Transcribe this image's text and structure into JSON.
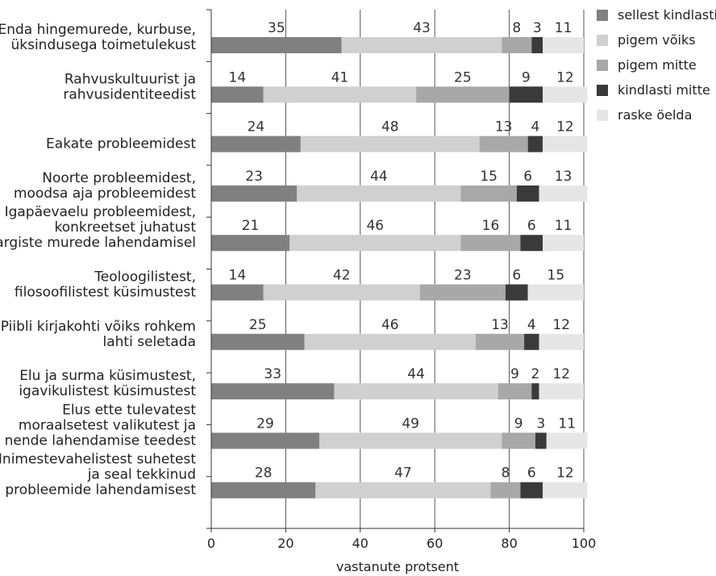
{
  "chart_data": {
    "type": "bar",
    "orientation": "horizontal",
    "stacked": true,
    "categories": [
      "Enda hingemurede, kurbuse,\nüksindusega toimetulekust",
      "Rahvuskultuurist ja\nrahvusidentiteedist",
      "Eakate probleemidest",
      "Noorte probleemidest,\nmoodsa aja probleemidest",
      "Igapäevaelu probleemidest,\nkonkreetset juhatust\nargiste murede lahendamisel",
      "Teoloogilistest,\nfilosoofilistest küsimustest",
      "Piibli kirjakohti võiks rohkem\nlahti seletada",
      "Elu ja surma küsimustest,\nigavikulistest küsimustest",
      "Elus ette tulevatest\nmoraalsetest valikutest ja\nnende lahendamise teedest",
      "Inimestevahelistest suhetest\nja seal tekkinud\nprobleemide lahendamisest"
    ],
    "series": [
      {
        "name": "sellest kindlasti",
        "color": "#808080",
        "values": [
          35,
          14,
          24,
          23,
          21,
          14,
          25,
          33,
          29,
          28
        ]
      },
      {
        "name": "pigem võiks",
        "color": "#d0d0d0",
        "values": [
          43,
          41,
          48,
          44,
          46,
          42,
          46,
          44,
          49,
          47
        ]
      },
      {
        "name": "pigem mitte",
        "color": "#a8a8a8",
        "values": [
          8,
          25,
          13,
          15,
          16,
          23,
          13,
          9,
          9,
          8
        ]
      },
      {
        "name": "kindlasti mitte",
        "color": "#3a3a3a",
        "values": [
          3,
          9,
          4,
          6,
          6,
          6,
          4,
          2,
          3,
          6
        ]
      },
      {
        "name": "raske öelda",
        "color": "#e6e6e6",
        "values": [
          11,
          12,
          12,
          13,
          11,
          15,
          12,
          12,
          11,
          12
        ]
      }
    ],
    "xlabel": "vastanute protsent",
    "xlim": [
      0,
      100
    ],
    "xticks": [
      0,
      20,
      40,
      60,
      80,
      100
    ],
    "grid": true,
    "legend_position": "top-right"
  }
}
